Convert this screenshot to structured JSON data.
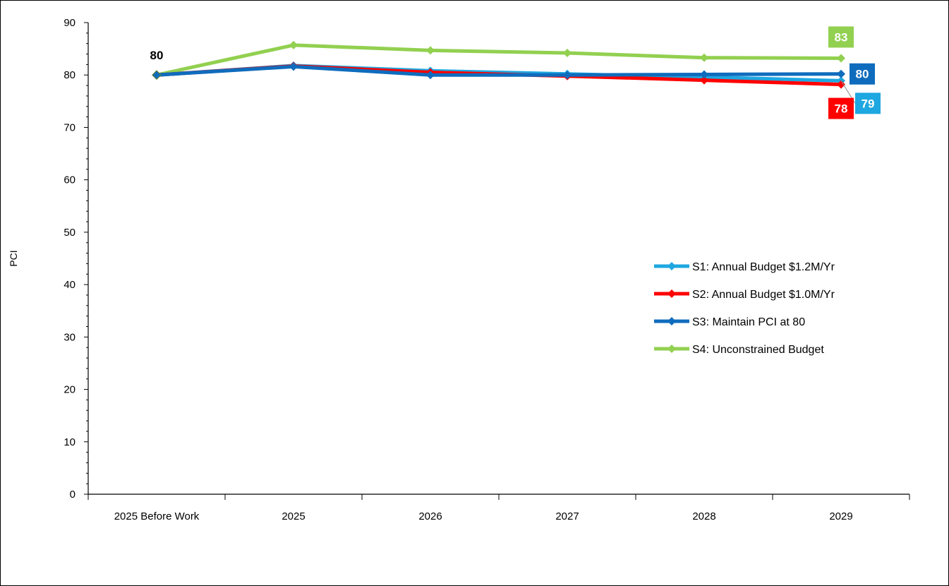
{
  "chart_data": {
    "type": "line",
    "title": "",
    "xlabel": "",
    "ylabel": "PCI",
    "ylim": [
      0,
      90
    ],
    "yticks": [
      0,
      10,
      20,
      30,
      40,
      50,
      60,
      70,
      80,
      90
    ],
    "categories": [
      "2025 Before Work",
      "2025",
      "2026",
      "2027",
      "2028",
      "2029"
    ],
    "grid": false,
    "legend_position": "right",
    "series": [
      {
        "name": "S1: Annual Budget $1.2M/Yr",
        "color": "#1ea7e1",
        "values": [
          80,
          81.8,
          80.8,
          80.2,
          79.6,
          78.9
        ],
        "end_label": "79"
      },
      {
        "name": "S2: Annual Budget $1.0M/Yr",
        "color": "#ff0000",
        "values": [
          80,
          81.7,
          80.5,
          79.8,
          79.0,
          78.2
        ],
        "end_label": "78"
      },
      {
        "name": "S3: Maintain PCI at 80",
        "color": "#0f6cbd",
        "values": [
          80,
          81.6,
          80.0,
          80.0,
          80.1,
          80.2
        ],
        "end_label": "80"
      },
      {
        "name": "S4: Unconstrained Budget",
        "color": "#92d050",
        "values": [
          80,
          85.7,
          84.7,
          84.2,
          83.3,
          83.2
        ],
        "end_label": "83"
      }
    ],
    "start_label": "80"
  }
}
